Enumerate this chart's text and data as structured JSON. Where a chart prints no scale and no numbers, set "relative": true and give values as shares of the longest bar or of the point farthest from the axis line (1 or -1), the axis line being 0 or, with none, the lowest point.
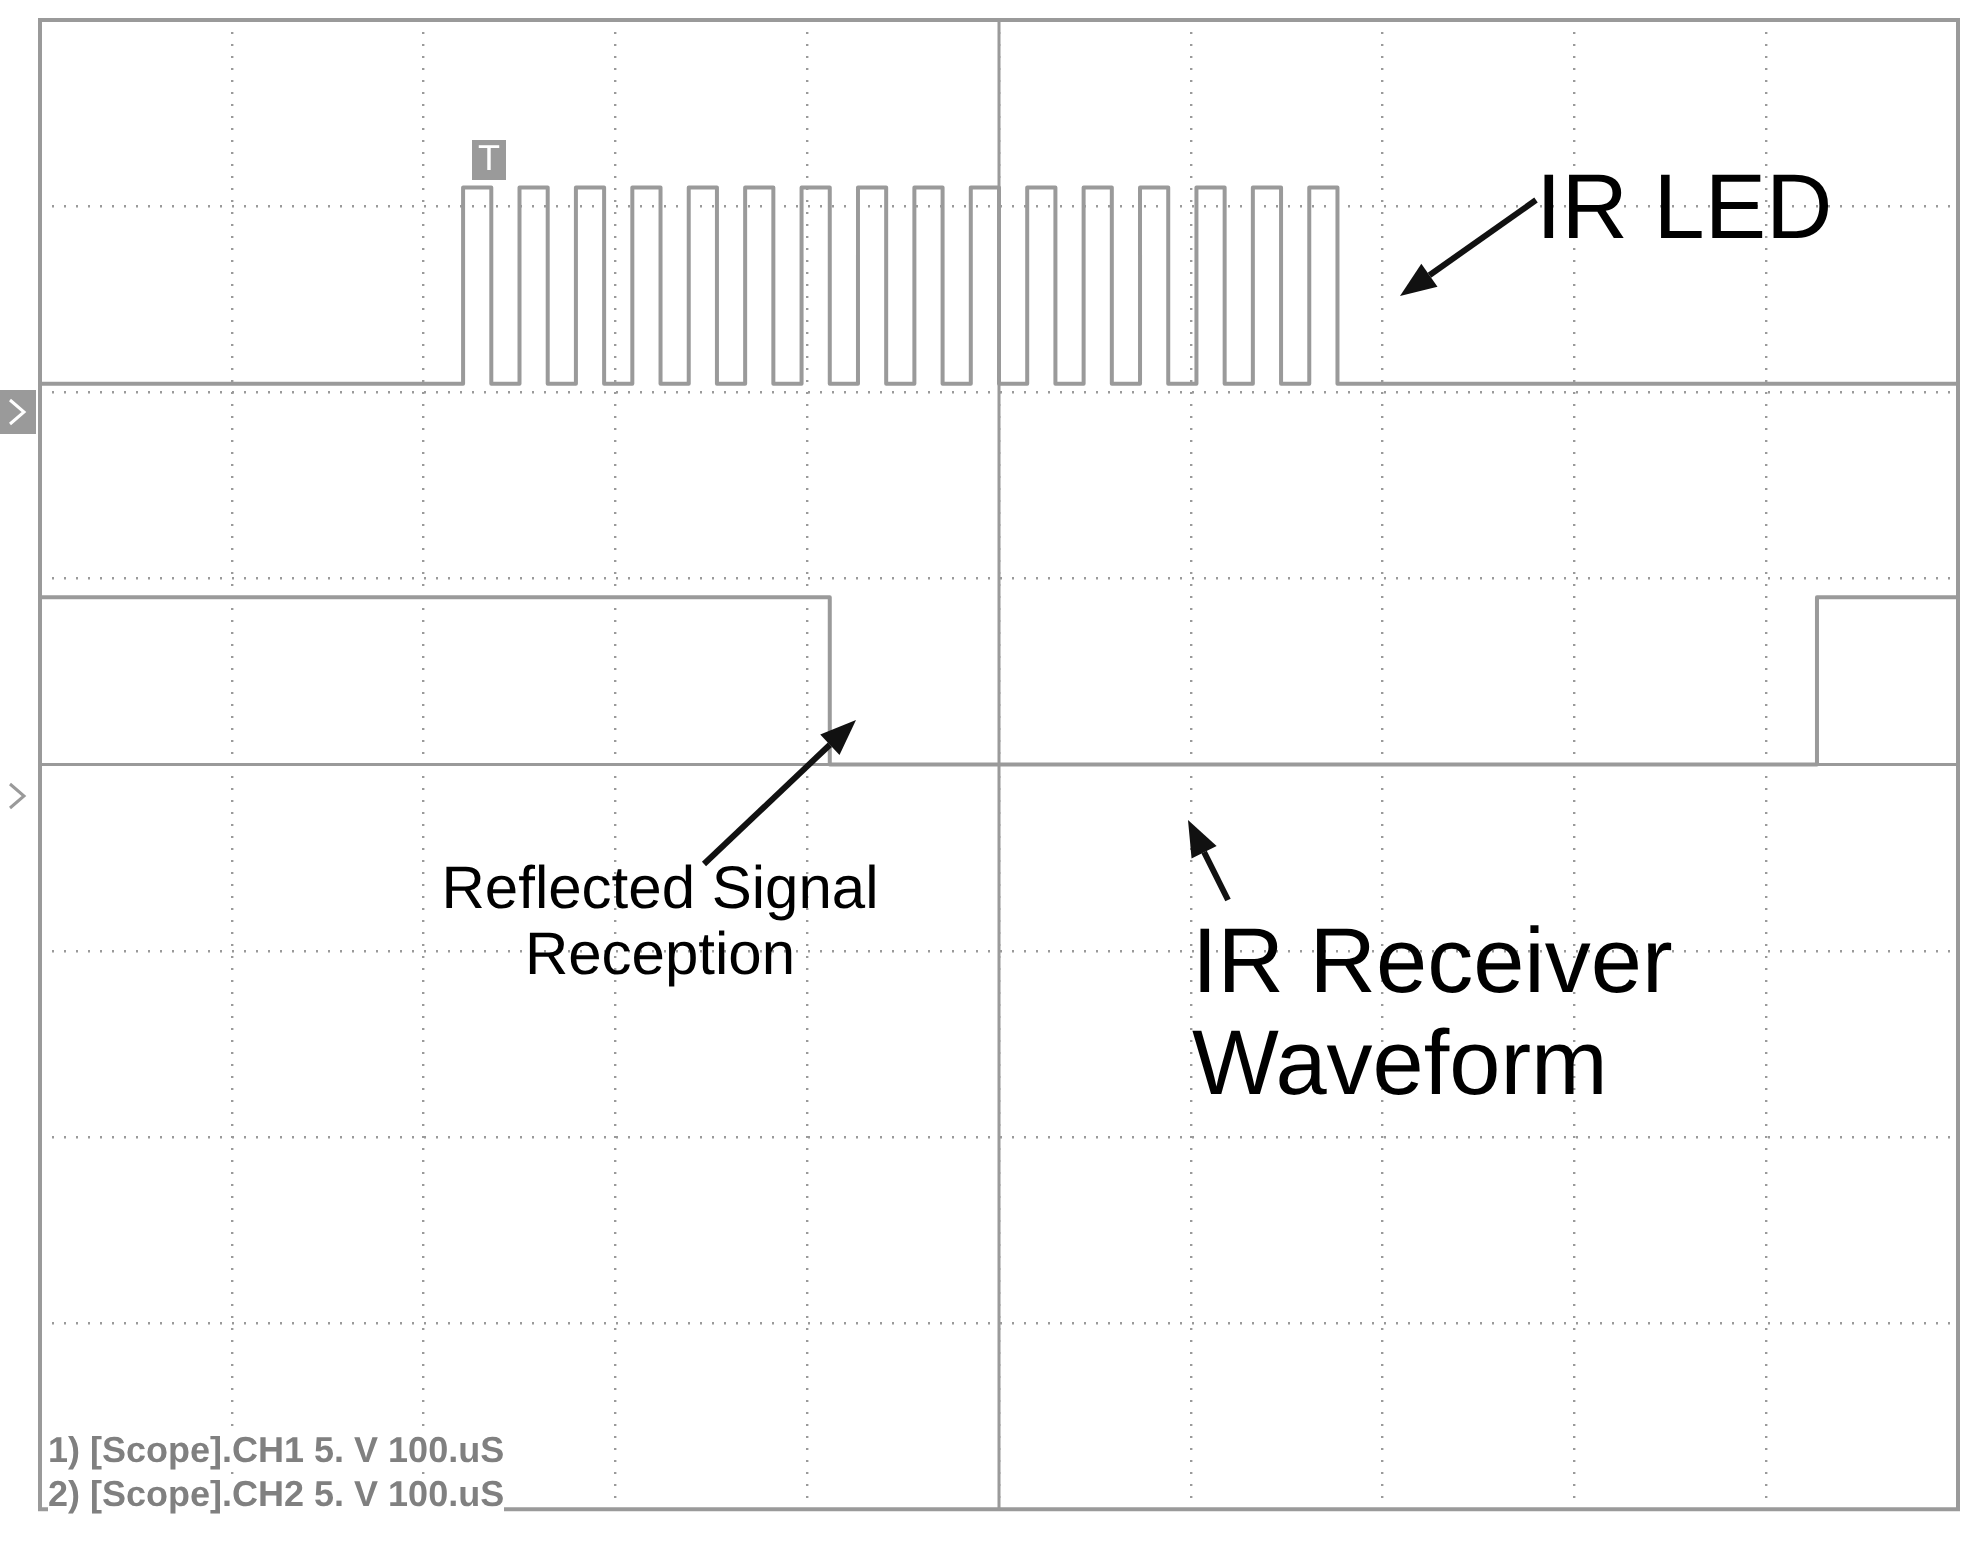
{
  "chart_data": {
    "type": "step",
    "relative": true,
    "grid": true,
    "legend": false,
    "marker": "none",
    "line_style": "solid",
    "categories": [
      null,
      null,
      null,
      null,
      null,
      null,
      null,
      null,
      null,
      null,
      null,
      null,
      null,
      null,
      null,
      null,
      null,
      null,
      null,
      null,
      null,
      null,
      null,
      null,
      null,
      null,
      null,
      null,
      null,
      null,
      null,
      null,
      null,
      null,
      null,
      null,
      null,
      null,
      null,
      null,
      null,
      null,
      null,
      null,
      null,
      null,
      null,
      null,
      null,
      null,
      null,
      null,
      null,
      null,
      null,
      null,
      null,
      null,
      null,
      null,
      null,
      null,
      null,
      null,
      null,
      null,
      null,
      null,
      null
    ],
    "series": [
      {
        "color": "#9a9a9a",
        "values": [
          0.66,
          0.66,
          0.66,
          0.66,
          0.66,
          0.66,
          0.66,
          0.66,
          0.66,
          0.66,
          0.66,
          0.66,
          0.66,
          0.66,
          0.66,
          0.66,
          1,
          0.66,
          1,
          0.66,
          1,
          0.66,
          1,
          0.66,
          1,
          0.66,
          1,
          0.66,
          1,
          0.66,
          1,
          0.66,
          1,
          0.66,
          1,
          0.66,
          1,
          0.66,
          1,
          0.66,
          1,
          0.66,
          1,
          0.66,
          1,
          0.66,
          1,
          0.66,
          0.66,
          0.66,
          0.66,
          0.66,
          0.66,
          0.66,
          0.66,
          0.66,
          0.66,
          0.66,
          0.66,
          0.66,
          0.66,
          0.66,
          0.66,
          0.66,
          0.66,
          0.66,
          0.66,
          0.66,
          0.66
        ]
      },
      {
        "color": "#9a9a9a",
        "values": [
          0.29,
          0.29,
          0.29,
          0.29,
          0.29,
          0.29,
          0.29,
          0.29,
          0.29,
          0.29,
          0.29,
          0.29,
          0.29,
          0.29,
          0.29,
          0.29,
          0.29,
          0.29,
          0.29,
          0.29,
          0.29,
          0.29,
          0.29,
          0.29,
          0.29,
          0.29,
          0.29,
          0.29,
          0.29,
          0,
          0,
          0,
          0,
          0,
          0,
          0,
          0,
          0,
          0,
          0,
          0,
          0,
          0,
          0,
          0,
          0,
          0,
          0,
          0,
          0,
          0,
          0,
          0,
          0,
          0,
          0,
          0,
          0,
          0,
          0,
          0,
          0,
          0,
          0,
          0.29,
          0.29,
          0.29,
          0.29,
          0.29
        ]
      }
    ],
    "annotations": [
      "IR LED",
      "Reflected Signal Reception",
      "IR Receiver Waveform",
      "T",
      "1) [Scope].CH1 5. V 100.uS",
      "2) [Scope].CH2 5. V 100.uS"
    ]
  }
}
